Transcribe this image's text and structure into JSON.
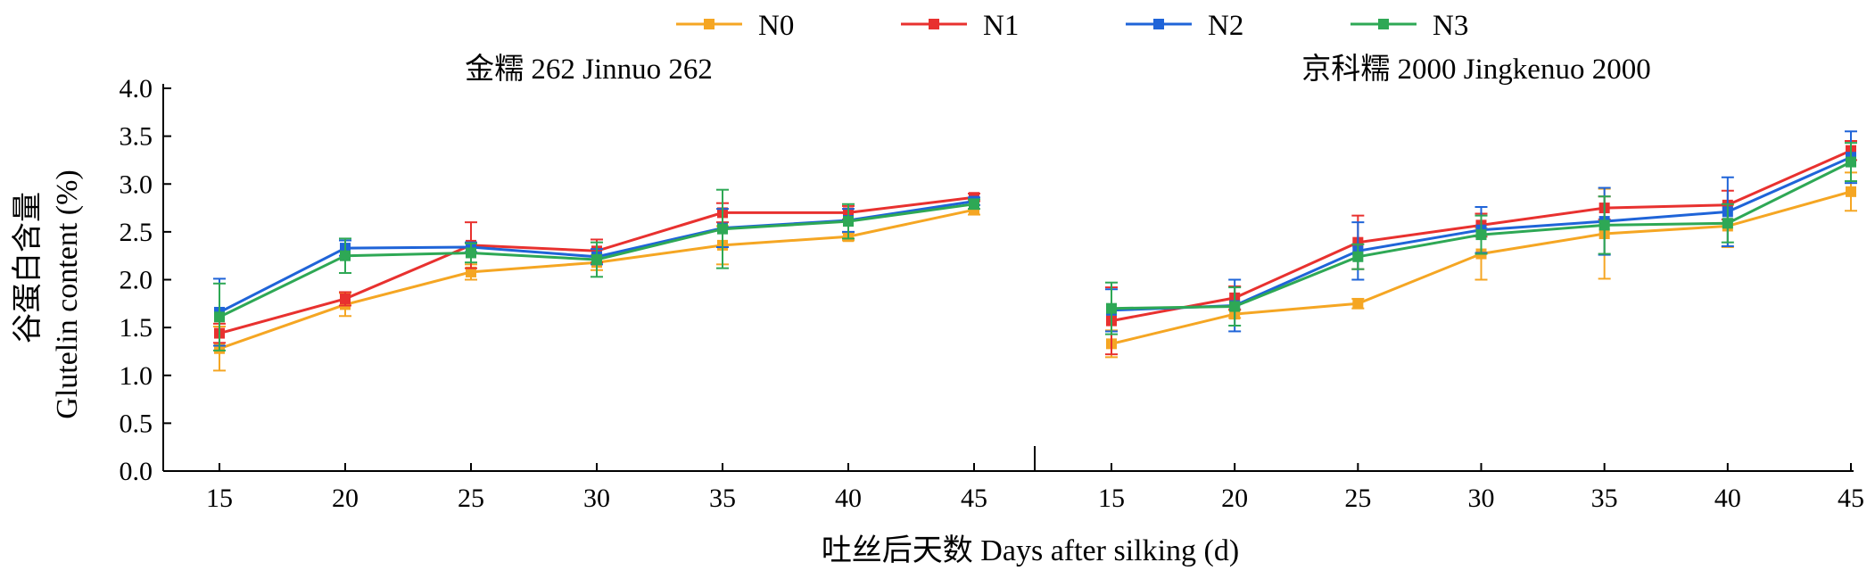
{
  "chart_data": {
    "type": "line",
    "layout": "two-panel shared y-axis",
    "xlabel": "吐丝后天数 Days after silking (d)",
    "ylabel_line1": "谷蛋白含量",
    "ylabel_line2": "Glutelin content (%)",
    "ylim": [
      0,
      4.0
    ],
    "yticks": [
      "0.0",
      "0.5",
      "1.0",
      "1.5",
      "2.0",
      "2.5",
      "3.0",
      "3.5",
      "4.0"
    ],
    "x": [
      "15",
      "20",
      "25",
      "30",
      "35",
      "40",
      "45"
    ],
    "grid": false,
    "legend": {
      "placement": "top-center",
      "entries": [
        {
          "name": "N0",
          "color": "#f5a623"
        },
        {
          "name": "N1",
          "color": "#e8312f"
        },
        {
          "name": "N2",
          "color": "#1f64d8"
        },
        {
          "name": "N3",
          "color": "#2ea855"
        }
      ]
    },
    "panels": [
      {
        "title": "金糯 262 Jinnuo 262",
        "series": [
          {
            "name": "N0",
            "values": [
              1.28,
              1.74,
              2.08,
              2.18,
              2.36,
              2.45,
              2.73
            ],
            "errors": [
              0.23,
              0.12,
              0.08,
              0.08,
              0.2,
              0.04,
              0.05
            ]
          },
          {
            "name": "N1",
            "values": [
              1.44,
              1.8,
              2.36,
              2.3,
              2.7,
              2.7,
              2.86
            ],
            "errors": [
              0.1,
              0.07,
              0.24,
              0.12,
              0.1,
              0.07,
              0.04
            ]
          },
          {
            "name": "N2",
            "values": [
              1.66,
              2.33,
              2.34,
              2.24,
              2.54,
              2.62,
              2.82
            ],
            "errors": [
              0.35,
              0.08,
              0.05,
              0.08,
              0.2,
              0.12,
              0.04
            ]
          },
          {
            "name": "N3",
            "values": [
              1.61,
              2.25,
              2.28,
              2.21,
              2.53,
              2.61,
              2.79
            ],
            "errors": [
              0.35,
              0.18,
              0.1,
              0.18,
              0.41,
              0.18,
              0.05
            ]
          }
        ]
      },
      {
        "title": "京科糯 2000 Jingkenuo 2000",
        "series": [
          {
            "name": "N0",
            "values": [
              1.33,
              1.64,
              1.75,
              2.27,
              2.48,
              2.56,
              2.92
            ],
            "errors": [
              0.14,
              0.04,
              0.05,
              0.27,
              0.47,
              0.22,
              0.2
            ]
          },
          {
            "name": "N1",
            "values": [
              1.57,
              1.81,
              2.39,
              2.57,
              2.75,
              2.78,
              3.35
            ],
            "errors": [
              0.35,
              0.12,
              0.28,
              0.12,
              0.12,
              0.15,
              0.1
            ]
          },
          {
            "name": "N2",
            "values": [
              1.68,
              1.73,
              2.3,
              2.52,
              2.61,
              2.71,
              3.28
            ],
            "errors": [
              0.22,
              0.27,
              0.3,
              0.24,
              0.35,
              0.36,
              0.27
            ]
          },
          {
            "name": "N3",
            "values": [
              1.7,
              1.72,
              2.24,
              2.47,
              2.57,
              2.59,
              3.23
            ],
            "errors": [
              0.27,
              0.2,
              0.13,
              0.2,
              0.3,
              0.2,
              0.2
            ]
          }
        ]
      }
    ]
  }
}
